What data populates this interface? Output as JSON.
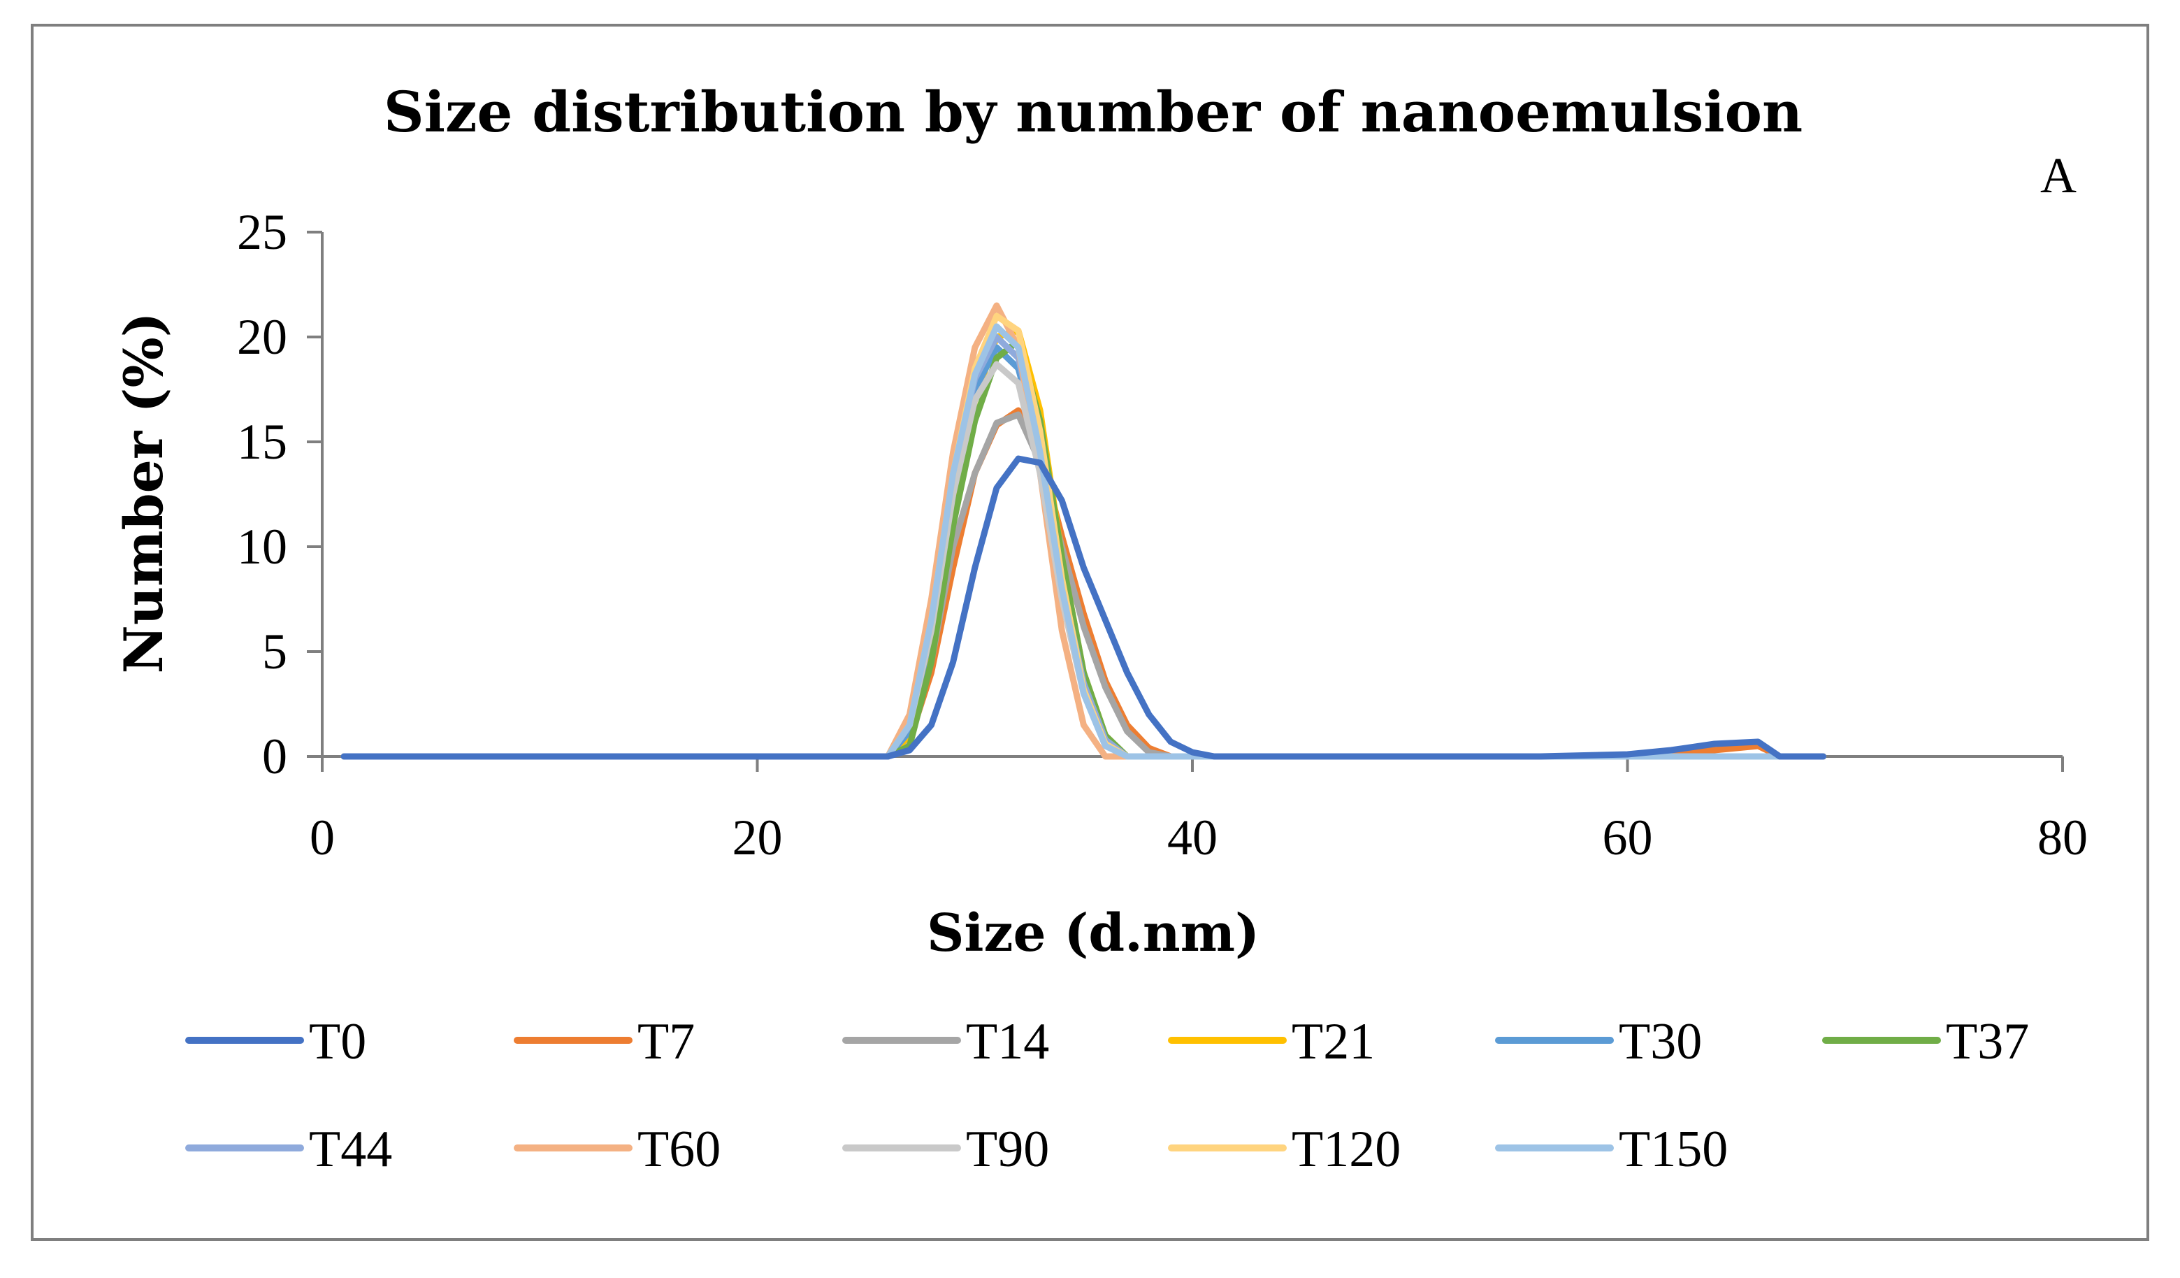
{
  "chart_data": {
    "type": "line",
    "title": "Size distribution by number of nanoemulsion",
    "panel_label": "A",
    "xlabel": "Size (d.nm)",
    "ylabel": "Number (%)",
    "xlim": [
      0,
      80
    ],
    "ylim": [
      0,
      25
    ],
    "x_ticks": [
      0,
      20,
      40,
      60,
      80
    ],
    "y_ticks": [
      0,
      5,
      10,
      15,
      20,
      25
    ],
    "grid": false,
    "legend_position": "bottom",
    "series": [
      {
        "name": "T0",
        "color": "#4472C4",
        "points": [
          [
            1,
            0
          ],
          [
            26,
            0
          ],
          [
            27,
            0.3
          ],
          [
            28,
            1.5
          ],
          [
            29,
            4.5
          ],
          [
            30,
            9
          ],
          [
            31,
            12.8
          ],
          [
            32,
            14.2
          ],
          [
            33,
            14
          ],
          [
            34,
            12.2
          ],
          [
            35,
            9
          ],
          [
            36,
            6.5
          ],
          [
            37,
            4
          ],
          [
            38,
            2
          ],
          [
            39,
            0.7
          ],
          [
            40,
            0.2
          ],
          [
            41,
            0
          ],
          [
            56,
            0
          ],
          [
            60,
            0.1
          ],
          [
            62,
            0.3
          ],
          [
            64,
            0.6
          ],
          [
            66,
            0.7
          ],
          [
            67,
            0
          ],
          [
            69,
            0
          ]
        ]
      },
      {
        "name": "T7",
        "color": "#ED7D31",
        "points": [
          [
            1,
            0
          ],
          [
            26,
            0
          ],
          [
            27,
            0.8
          ],
          [
            28,
            4
          ],
          [
            29,
            9
          ],
          [
            30,
            13.5
          ],
          [
            31,
            15.8
          ],
          [
            32,
            16.5
          ],
          [
            33,
            14.5
          ],
          [
            34,
            10.5
          ],
          [
            35,
            6.8
          ],
          [
            36,
            3.6
          ],
          [
            37,
            1.5
          ],
          [
            38,
            0.4
          ],
          [
            39,
            0
          ],
          [
            60,
            0
          ],
          [
            63,
            0.2
          ],
          [
            66,
            0.5
          ],
          [
            67,
            0
          ],
          [
            69,
            0
          ]
        ]
      },
      {
        "name": "T14",
        "color": "#A5A5A5",
        "points": [
          [
            1,
            0
          ],
          [
            26,
            0
          ],
          [
            27,
            0.9
          ],
          [
            28,
            4.5
          ],
          [
            29,
            10
          ],
          [
            30,
            13.5
          ],
          [
            31,
            15.9
          ],
          [
            32,
            16.3
          ],
          [
            33,
            14
          ],
          [
            34,
            10
          ],
          [
            35,
            6.2
          ],
          [
            36,
            3.3
          ],
          [
            37,
            1.2
          ],
          [
            38,
            0.2
          ],
          [
            39,
            0
          ],
          [
            69,
            0
          ]
        ]
      },
      {
        "name": "T21",
        "color": "#FFC000",
        "points": [
          [
            1,
            0
          ],
          [
            26,
            0
          ],
          [
            27,
            1
          ],
          [
            28,
            5
          ],
          [
            29,
            12
          ],
          [
            30,
            17
          ],
          [
            31,
            20
          ],
          [
            32,
            20.3
          ],
          [
            33,
            16.5
          ],
          [
            34,
            9.5
          ],
          [
            35,
            4
          ],
          [
            36,
            1
          ],
          [
            37,
            0
          ],
          [
            69,
            0
          ]
        ]
      },
      {
        "name": "T30",
        "color": "#5B9BD5",
        "points": [
          [
            1,
            0
          ],
          [
            26,
            0
          ],
          [
            27,
            1.2
          ],
          [
            28,
            6
          ],
          [
            29,
            12.5
          ],
          [
            30,
            17.5
          ],
          [
            31,
            19.5
          ],
          [
            32,
            18.5
          ],
          [
            33,
            14.5
          ],
          [
            34,
            8.5
          ],
          [
            35,
            3.5
          ],
          [
            36,
            0.8
          ],
          [
            37,
            0
          ],
          [
            69,
            0
          ]
        ]
      },
      {
        "name": "T37",
        "color": "#70AD47",
        "points": [
          [
            1,
            0
          ],
          [
            26,
            0
          ],
          [
            27,
            0.5
          ],
          [
            28,
            4.5
          ],
          [
            29,
            11
          ],
          [
            30,
            16
          ],
          [
            31,
            19
          ],
          [
            32,
            19.8
          ],
          [
            33,
            16
          ],
          [
            34,
            9.5
          ],
          [
            35,
            4
          ],
          [
            36,
            1
          ],
          [
            37,
            0
          ],
          [
            69,
            0
          ]
        ]
      },
      {
        "name": "T44",
        "color": "#8FAADC",
        "points": [
          [
            1,
            0
          ],
          [
            26,
            0
          ],
          [
            27,
            1.5
          ],
          [
            28,
            6.5
          ],
          [
            29,
            13.5
          ],
          [
            30,
            18
          ],
          [
            31,
            20
          ],
          [
            32,
            19
          ],
          [
            33,
            14.5
          ],
          [
            34,
            8.3
          ],
          [
            35,
            3.5
          ],
          [
            36,
            0.8
          ],
          [
            37,
            0
          ],
          [
            69,
            0
          ]
        ]
      },
      {
        "name": "T60",
        "color": "#F4B183",
        "points": [
          [
            1,
            0
          ],
          [
            26,
            0
          ],
          [
            27,
            2
          ],
          [
            28,
            7.5
          ],
          [
            29,
            14.5
          ],
          [
            30,
            19.5
          ],
          [
            31,
            21.5
          ],
          [
            32,
            19.5
          ],
          [
            33,
            13.5
          ],
          [
            34,
            6
          ],
          [
            35,
            1.5
          ],
          [
            36,
            0
          ],
          [
            69,
            0
          ]
        ]
      },
      {
        "name": "T90",
        "color": "#C9C9C9",
        "points": [
          [
            1,
            0
          ],
          [
            26,
            0
          ],
          [
            27,
            1.5
          ],
          [
            28,
            6
          ],
          [
            29,
            12.5
          ],
          [
            30,
            17
          ],
          [
            31,
            18.7
          ],
          [
            32,
            17.8
          ],
          [
            33,
            13.5
          ],
          [
            34,
            7.5
          ],
          [
            35,
            3
          ],
          [
            36,
            0.6
          ],
          [
            37,
            0
          ],
          [
            69,
            0
          ]
        ]
      },
      {
        "name": "T120",
        "color": "#FFD47F",
        "points": [
          [
            1,
            0
          ],
          [
            26,
            0
          ],
          [
            27,
            1.5
          ],
          [
            28,
            6.5
          ],
          [
            29,
            13.5
          ],
          [
            30,
            18.5
          ],
          [
            31,
            21
          ],
          [
            32,
            20.3
          ],
          [
            33,
            15.5
          ],
          [
            34,
            8.5
          ],
          [
            35,
            3.2
          ],
          [
            36,
            0.6
          ],
          [
            37,
            0
          ],
          [
            69,
            0
          ]
        ]
      },
      {
        "name": "T150",
        "color": "#9DC3E6",
        "points": [
          [
            1,
            0
          ],
          [
            26,
            0
          ],
          [
            27,
            1.5
          ],
          [
            28,
            6.5
          ],
          [
            29,
            13.5
          ],
          [
            30,
            18.2
          ],
          [
            31,
            20.5
          ],
          [
            32,
            19.5
          ],
          [
            33,
            14.5
          ],
          [
            34,
            8
          ],
          [
            35,
            3
          ],
          [
            36,
            0.5
          ],
          [
            37,
            0
          ],
          [
            69,
            0
          ]
        ]
      }
    ]
  },
  "colors": {
    "frame": "#7F7F7F",
    "axis": "#7F7F7F",
    "text": "#000000"
  }
}
